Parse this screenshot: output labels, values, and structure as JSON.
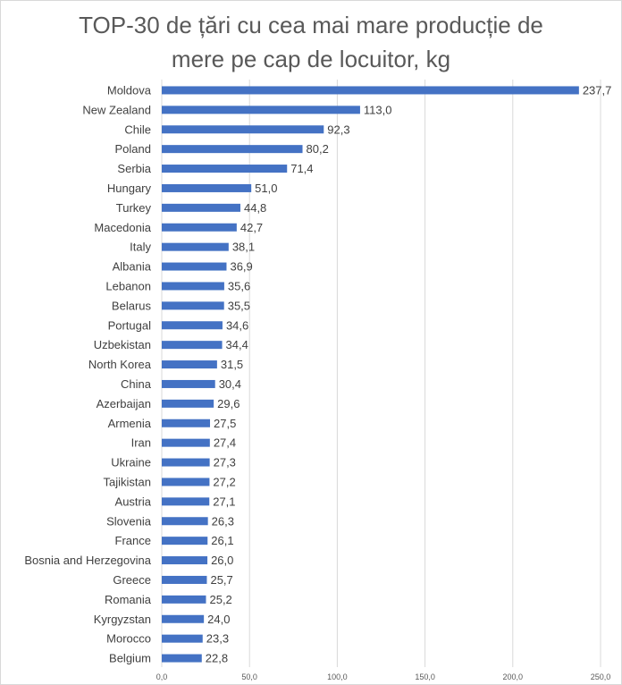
{
  "chart_data": {
    "type": "bar",
    "orientation": "horizontal",
    "title_lines": [
      "TOP-30 de țări cu cea mai mare producție de",
      "mere pe cap de locuitor, kg"
    ],
    "categories": [
      "Moldova",
      "New Zealand",
      "Chile",
      "Poland",
      "Serbia",
      "Hungary",
      "Turkey",
      "Macedonia",
      "Italy",
      "Albania",
      "Lebanon",
      "Belarus",
      "Portugal",
      "Uzbekistan",
      "North Korea",
      "China",
      "Azerbaijan",
      "Armenia",
      "Iran",
      "Ukraine",
      "Tajikistan",
      "Austria",
      "Slovenia",
      "France",
      "Bosnia and Herzegovina",
      "Greece",
      "Romania",
      "Kyrgyzstan",
      "Morocco",
      "Belgium"
    ],
    "values": [
      237.7,
      113.0,
      92.3,
      80.2,
      71.4,
      51.0,
      44.8,
      42.7,
      38.1,
      36.9,
      35.6,
      35.5,
      34.6,
      34.4,
      31.5,
      30.4,
      29.6,
      27.5,
      27.4,
      27.3,
      27.2,
      27.1,
      26.3,
      26.1,
      26.0,
      25.7,
      25.2,
      24.0,
      23.3,
      22.8
    ],
    "value_labels": [
      "237,7",
      "113,0",
      "92,3",
      "80,2",
      "71,4",
      "51,0",
      "44,8",
      "42,7",
      "38,1",
      "36,9",
      "35,6",
      "35,5",
      "34,6",
      "34,4",
      "31,5",
      "30,4",
      "29,6",
      "27,5",
      "27,4",
      "27,3",
      "27,2",
      "27,1",
      "26,3",
      "26,1",
      "26,0",
      "25,7",
      "25,2",
      "24,0",
      "23,3",
      "22,8"
    ],
    "x_ticks": [
      0,
      50,
      100,
      150,
      200,
      250
    ],
    "x_tick_labels": [
      "0,0",
      "50,0",
      "100,0",
      "150,0",
      "200,0",
      "250,0"
    ],
    "xlim": [
      0,
      250
    ],
    "grid": "vertical",
    "bar_color": "#4472c4",
    "grid_color": "#d9d9d9",
    "legend": "none"
  }
}
